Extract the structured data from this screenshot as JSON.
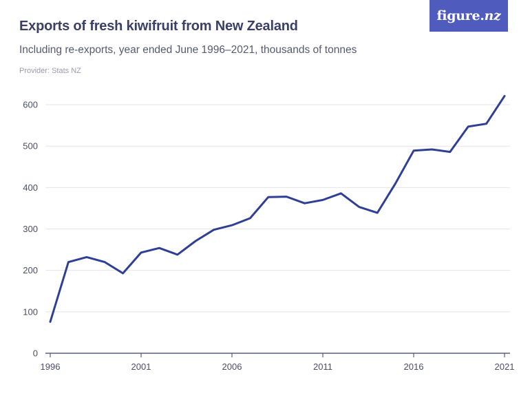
{
  "header": {
    "title": "Exports of fresh kiwifruit from New Zealand",
    "subtitle": "Including re-exports, year ended June 1996–2021, thousands of tonnes",
    "provider": "Provider: Stats NZ"
  },
  "logo": {
    "text_main": "figure.",
    "text_italic": "nz"
  },
  "colors": {
    "line": "#2f3f96",
    "grid": "#e4e4ea",
    "accent": "#4f5bbd"
  },
  "chart_data": {
    "type": "line",
    "title": "Exports of fresh kiwifruit from New Zealand",
    "subtitle": "Including re-exports, year ended June 1996–2021, thousands of tonnes",
    "xlabel": "",
    "ylabel": "",
    "ylim": [
      0,
      620
    ],
    "xlim": [
      1996,
      2021
    ],
    "x_ticks": [
      1996,
      2001,
      2006,
      2011,
      2016,
      2021
    ],
    "y_ticks": [
      0,
      100,
      200,
      300,
      400,
      500,
      600
    ],
    "grid": true,
    "x": [
      1996,
      1997,
      1998,
      1999,
      2000,
      2001,
      2002,
      2003,
      2004,
      2005,
      2006,
      2007,
      2008,
      2009,
      2010,
      2011,
      2012,
      2013,
      2014,
      2015,
      2016,
      2017,
      2018,
      2019,
      2020,
      2021
    ],
    "series": [
      {
        "values": [
          76,
          220,
          232,
          220,
          193,
          243,
          254,
          238,
          271,
          298,
          309,
          326,
          377,
          378,
          362,
          370,
          386,
          353,
          339,
          410,
          489,
          492,
          486,
          547,
          554,
          621
        ]
      }
    ]
  }
}
